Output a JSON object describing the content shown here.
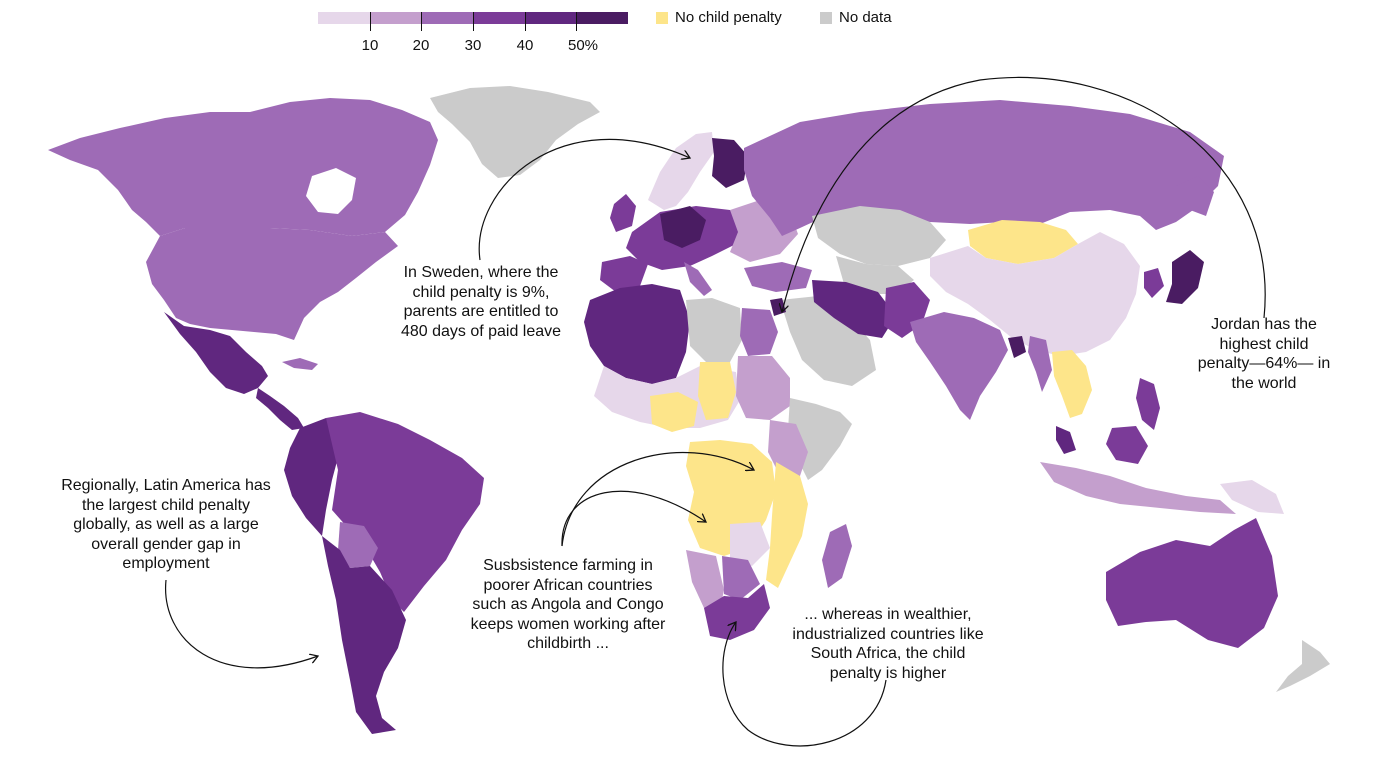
{
  "legend": {
    "scale_colors": [
      "#e6d7ea",
      "#c49fcd",
      "#9e6bb6",
      "#7b3b98",
      "#60277f",
      "#4a1c62"
    ],
    "tick_labels": [
      "10",
      "20",
      "30",
      "40",
      "50%"
    ],
    "no_penalty_label": "No child penalty",
    "no_penalty_color": "#fde58a",
    "no_data_label": "No data",
    "no_data_color": "#cbcbcb"
  },
  "annotations": {
    "sweden": "In Sweden, where the child penalty is 9%, parents are entitled to 480 days of paid leave",
    "jordan": "Jordan has the highest child penalty—64%— in the world",
    "latin_america": "Regionally, Latin America has the largest child penalty globally, as well as a large overall gender gap in employment",
    "africa_poor": "Susbsistence farming in poorer African countries such as Angola and Congo keeps women working after childbirth ...",
    "south_africa": "... whereas in wealthier, industrialized countries like South Africa, the child penalty is higher"
  }
}
